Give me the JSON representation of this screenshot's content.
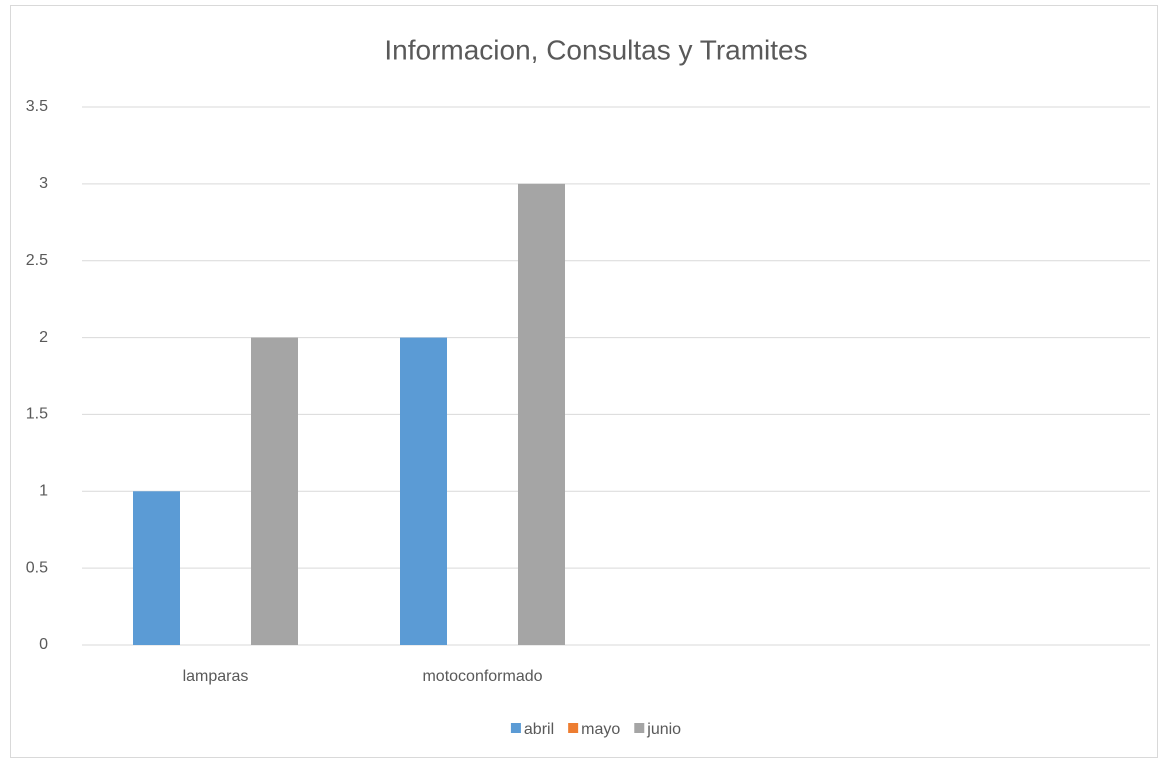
{
  "chart_data": {
    "type": "bar",
    "title": "Informacion, Consultas y Tramites",
    "categories": [
      "lamparas",
      "motoconformado",
      null,
      null
    ],
    "series": [
      {
        "name": "abril",
        "color": "#5b9bd5",
        "values": [
          1,
          2,
          null,
          null
        ]
      },
      {
        "name": "mayo",
        "color": "#ed7d31",
        "values": [
          null,
          null,
          null,
          null
        ]
      },
      {
        "name": "junio",
        "color": "#a5a5a5",
        "values": [
          2,
          3,
          null,
          null
        ]
      }
    ],
    "ylim": [
      0,
      3.5
    ],
    "yticks": [
      0,
      0.5,
      1,
      1.5,
      2,
      2.5,
      3,
      3.5
    ],
    "grid": true,
    "legend": "bottom"
  }
}
